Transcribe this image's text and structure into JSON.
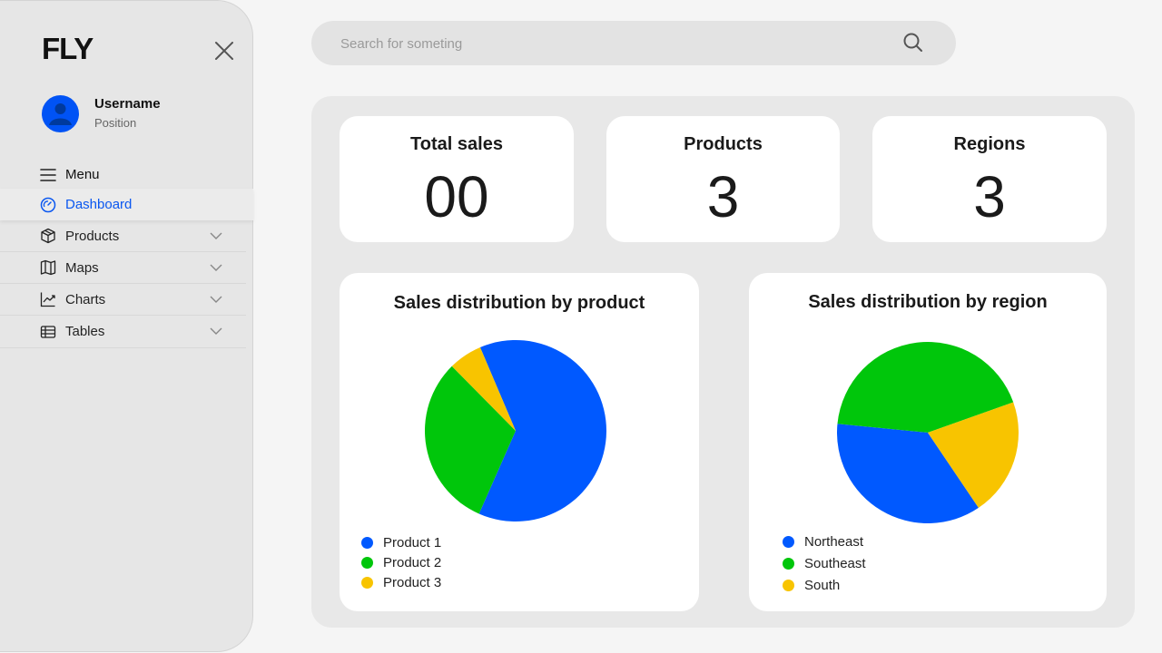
{
  "sidebar": {
    "logo": "FLY",
    "user": {
      "name": "Username",
      "position": "Position"
    },
    "menu_label": "Menu",
    "items": [
      {
        "label": "Dashboard",
        "icon": "gauge-icon"
      },
      {
        "label": "Products",
        "icon": "box-icon"
      },
      {
        "label": "Maps",
        "icon": "map-icon"
      },
      {
        "label": "Charts",
        "icon": "line-chart-icon"
      },
      {
        "label": "Tables",
        "icon": "table-icon"
      }
    ]
  },
  "search": {
    "placeholder": "Search for someting",
    "value": ""
  },
  "stats": [
    {
      "title": "Total sales",
      "value": "00"
    },
    {
      "title": "Products",
      "value": "3"
    },
    {
      "title": "Regions",
      "value": "3"
    }
  ],
  "colors": {
    "blue": "#0059ff",
    "green": "#00c60b",
    "yellow": "#f8c400",
    "accent": "#0a57f0"
  },
  "chart_data": [
    {
      "type": "pie",
      "title": "Sales distribution by product",
      "series": [
        {
          "name": "Product 1",
          "value": 63,
          "color": "#0059ff"
        },
        {
          "name": "Product 2",
          "value": 31,
          "color": "#00c60b"
        },
        {
          "name": "Product 3",
          "value": 6,
          "color": "#f8c400"
        }
      ]
    },
    {
      "type": "pie",
      "title": "Sales distribution by region",
      "series": [
        {
          "name": "Northeast",
          "value": 36,
          "color": "#0059ff"
        },
        {
          "name": "Southeast",
          "value": 43,
          "color": "#00c60b"
        },
        {
          "name": "South",
          "value": 21,
          "color": "#f8c400"
        }
      ]
    }
  ]
}
